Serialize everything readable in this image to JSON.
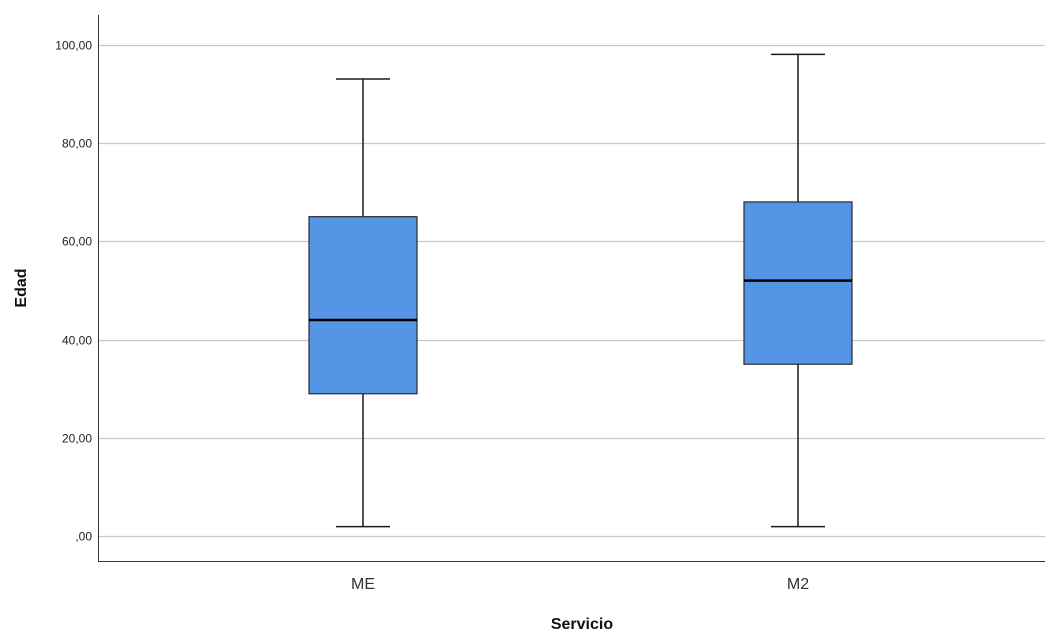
{
  "chart_data": {
    "type": "boxplot",
    "xlabel": "Servicio",
    "ylabel": "Edad",
    "ylim": [
      -5,
      106
    ],
    "yticks": [
      0,
      20,
      40,
      60,
      80,
      100
    ],
    "ytick_labels": [
      ",00",
      "20,00",
      "40,00",
      "60,00",
      "80,00",
      "100,00"
    ],
    "grid": true,
    "box_color": "#5595E5",
    "categories": [
      "ME",
      "M2"
    ],
    "boxes": [
      {
        "category": "ME",
        "min": 2,
        "q1": 29,
        "median": 44,
        "q3": 65,
        "max": 93
      },
      {
        "category": "M2",
        "min": 2,
        "q1": 35,
        "median": 52,
        "q3": 68,
        "max": 98
      }
    ]
  }
}
